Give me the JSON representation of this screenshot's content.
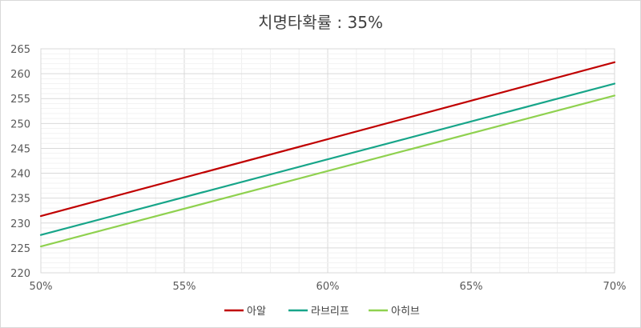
{
  "chart_data": {
    "type": "line",
    "title": "치명타확률 : 35%",
    "x": [
      50,
      70
    ],
    "x_tick_labels": [
      "50%",
      "55%",
      "60%",
      "65%",
      "70%"
    ],
    "xlim": [
      50,
      70
    ],
    "ylim": [
      220,
      265
    ],
    "y_tick_labels": [
      "220",
      "225",
      "230",
      "235",
      "240",
      "245",
      "250",
      "255",
      "260",
      "265"
    ],
    "grid": true,
    "legend_position": "bottom",
    "series": [
      {
        "name": "아알",
        "color": "#c00000",
        "values": [
          231.4,
          262.3
        ]
      },
      {
        "name": "라브리프",
        "color": "#17a589",
        "values": [
          227.6,
          258.0
        ]
      },
      {
        "name": "아히브",
        "color": "#8fd14f",
        "values": [
          225.3,
          255.6
        ]
      }
    ]
  }
}
